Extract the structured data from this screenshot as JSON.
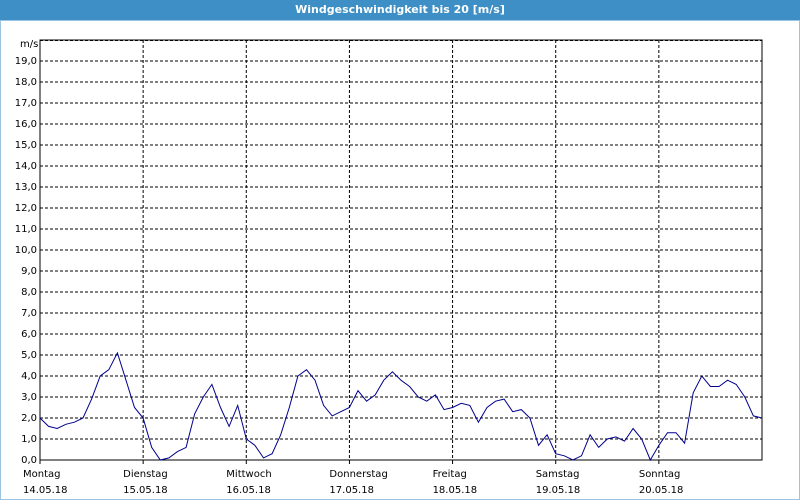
{
  "chart_data": {
    "type": "line",
    "title": "Windgeschwindigkeit bis 20 [m/s]",
    "y_label": "m/s",
    "ylim": [
      0,
      20
    ],
    "yticks": [
      {
        "value": 0,
        "label": "0,0"
      },
      {
        "value": 1,
        "label": "1,0"
      },
      {
        "value": 2,
        "label": "2,0"
      },
      {
        "value": 3,
        "label": "3,0"
      },
      {
        "value": 4,
        "label": "4,0"
      },
      {
        "value": 5,
        "label": "5,0"
      },
      {
        "value": 6,
        "label": "6,0"
      },
      {
        "value": 7,
        "label": "7,0"
      },
      {
        "value": 8,
        "label": "8,0"
      },
      {
        "value": 9,
        "label": "9,0"
      },
      {
        "value": 10,
        "label": "10,0"
      },
      {
        "value": 11,
        "label": "11,0"
      },
      {
        "value": 12,
        "label": "12,0"
      },
      {
        "value": 13,
        "label": "13,0"
      },
      {
        "value": 14,
        "label": "14,0"
      },
      {
        "value": 15,
        "label": "15,0"
      },
      {
        "value": 16,
        "label": "16,0"
      },
      {
        "value": 17,
        "label": "17,0"
      },
      {
        "value": 18,
        "label": "18,0"
      },
      {
        "value": 19,
        "label": "19,0"
      }
    ],
    "grid": true,
    "days": [
      {
        "name": "Montag",
        "date": "14.05.18"
      },
      {
        "name": "Dienstag",
        "date": "15.05.18"
      },
      {
        "name": "Mittwoch",
        "date": "16.05.18"
      },
      {
        "name": "Donnerstag",
        "date": "17.05.18"
      },
      {
        "name": "Freitag",
        "date": "18.05.18"
      },
      {
        "name": "Samstag",
        "date": "19.05.18"
      },
      {
        "name": "Sonntag",
        "date": "20.05.18"
      }
    ],
    "color": "#00008b",
    "values": [
      2.0,
      1.6,
      1.5,
      1.7,
      1.8,
      2.0,
      2.9,
      4.0,
      4.3,
      5.1,
      3.8,
      2.5,
      2.0,
      0.6,
      0.0,
      0.1,
      0.4,
      0.6,
      2.2,
      3.0,
      3.6,
      2.5,
      1.6,
      2.6,
      1.0,
      0.7,
      0.1,
      0.3,
      1.2,
      2.5,
      4.0,
      4.3,
      3.8,
      2.6,
      2.1,
      2.3,
      2.5,
      3.3,
      2.8,
      3.1,
      3.8,
      4.2,
      3.8,
      3.5,
      3.0,
      2.8,
      3.1,
      2.4,
      2.5,
      2.7,
      2.6,
      1.8,
      2.5,
      2.8,
      2.9,
      2.3,
      2.4,
      2.0,
      0.7,
      1.2,
      0.3,
      0.2,
      0.0,
      0.2,
      1.2,
      0.6,
      1.0,
      1.1,
      0.9,
      1.5,
      1.0,
      0.0,
      0.7,
      1.3,
      1.3,
      0.8,
      3.2,
      4.0,
      3.5,
      3.5,
      3.8,
      3.6,
      3.0,
      2.1,
      2.0
    ]
  }
}
